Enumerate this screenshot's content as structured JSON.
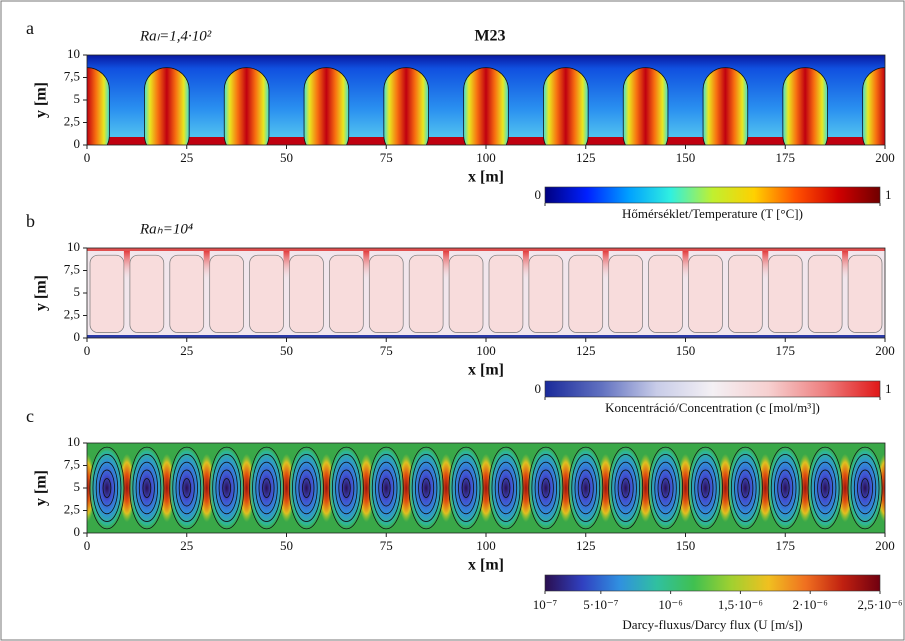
{
  "chart_data": [
    {
      "type": "heatmap",
      "panel": "a",
      "annotation": "Raₗ=1,4·10²",
      "title": "M23",
      "xlabel": "x [m]",
      "ylabel": "y [m]",
      "xlim": [
        0,
        200
      ],
      "xticks": [
        0,
        25,
        50,
        75,
        100,
        125,
        150,
        175,
        200
      ],
      "ylim": [
        0,
        10
      ],
      "yticks": [
        0,
        {
          "value": 2.5,
          "label": "2,5"
        },
        5,
        {
          "value": 7.5,
          "label": "7,5"
        },
        10
      ],
      "colormap": "jet",
      "colorbar": {
        "label": "Hőmérséklet/Temperature (T [°C])",
        "lim": [
          0,
          1
        ],
        "ticks": [
          0,
          1
        ]
      }
    },
    {
      "type": "heatmap",
      "panel": "b",
      "annotation": "Raₕ=10⁴",
      "xlabel": "x [m]",
      "ylabel": "y [m]",
      "xlim": [
        0,
        200
      ],
      "xticks": [
        0,
        25,
        50,
        75,
        100,
        125,
        150,
        175,
        200
      ],
      "ylim": [
        0,
        10
      ],
      "yticks": [
        0,
        {
          "value": 2.5,
          "label": "2,5"
        },
        5,
        {
          "value": 7.5,
          "label": "7,5"
        },
        10
      ],
      "colormap": "bwr",
      "colorbar": {
        "label": "Koncentráció/Concentration (c [mol/m³])",
        "lim": [
          0,
          1
        ],
        "ticks": [
          0,
          1
        ]
      }
    },
    {
      "type": "heatmap",
      "panel": "c",
      "xlabel": "x [m]",
      "ylabel": "y [m]",
      "xlim": [
        0,
        200
      ],
      "xticks": [
        0,
        25,
        50,
        75,
        100,
        125,
        150,
        175,
        200
      ],
      "ylim": [
        0,
        10
      ],
      "yticks": [
        0,
        {
          "value": 2.5,
          "label": "2,5"
        },
        5,
        {
          "value": 7.5,
          "label": "7,5"
        },
        10
      ],
      "colormap": "turbo",
      "colorbar": {
        "label": "Darcy-fluxus/Darcy flux (U [m/s])",
        "lim": [
          1e-07,
          2.5e-06
        ],
        "ticks": [
          {
            "value": 1e-07,
            "label": "10⁻⁷"
          },
          {
            "value": 5e-07,
            "label": "5·10⁻⁷"
          },
          {
            "value": 1e-06,
            "label": "10⁻⁶"
          },
          {
            "value": 1.5e-06,
            "label": "1,5·10⁻⁶"
          },
          {
            "value": 2e-06,
            "label": "2·10⁻⁶"
          },
          {
            "value": 2.5e-06,
            "label": "2,5·10⁻⁶"
          }
        ]
      }
    }
  ]
}
